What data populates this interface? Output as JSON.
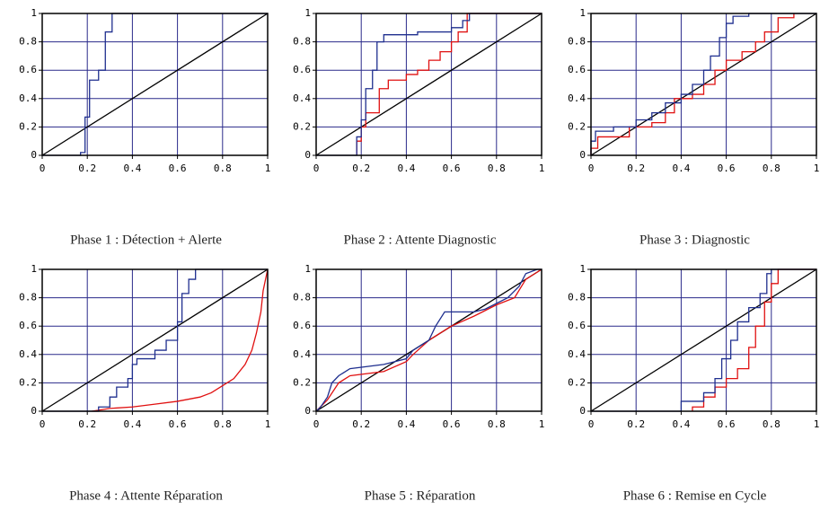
{
  "chart_data": [
    {
      "type": "line",
      "caption": "Phase 1 : Détection + Alerte",
      "xlim": [
        0,
        1
      ],
      "ylim": [
        0,
        1
      ],
      "xticks": [
        0,
        0.2,
        0.4,
        0.6,
        0.8,
        1
      ],
      "yticks": [
        0,
        0.2,
        0.4,
        0.6,
        0.8,
        1
      ],
      "grid": true,
      "grid_color": "#2a2a8a",
      "series": [
        {
          "color": "#000000",
          "x": [
            0,
            1
          ],
          "values": [
            0,
            1
          ]
        },
        {
          "color": "#1f2f8f",
          "x": [
            0,
            0.17,
            0.17,
            0.19,
            0.19,
            0.21,
            0.21,
            0.25,
            0.25,
            0.28,
            0.28,
            0.31,
            0.31,
            1
          ],
          "values": [
            0,
            0,
            0.02,
            0.02,
            0.27,
            0.27,
            0.53,
            0.53,
            0.6,
            0.6,
            0.87,
            0.87,
            1,
            1
          ]
        }
      ]
    },
    {
      "type": "line",
      "caption": "Phase 2 : Attente Diagnostic",
      "xlim": [
        0,
        1
      ],
      "ylim": [
        0,
        1
      ],
      "xticks": [
        0,
        0.2,
        0.4,
        0.6,
        0.8,
        1
      ],
      "yticks": [
        0,
        0.2,
        0.4,
        0.6,
        0.8,
        1
      ],
      "grid": true,
      "grid_color": "#2a2a8a",
      "series": [
        {
          "color": "#000000",
          "x": [
            0,
            1
          ],
          "values": [
            0,
            1
          ]
        },
        {
          "color": "#e01010",
          "x": [
            0.18,
            0.18,
            0.2,
            0.2,
            0.22,
            0.22,
            0.28,
            0.28,
            0.32,
            0.32,
            0.4,
            0.4,
            0.45,
            0.45,
            0.5,
            0.5,
            0.55,
            0.55,
            0.6,
            0.6,
            0.63,
            0.63,
            0.67,
            0.67,
            1
          ],
          "values": [
            0,
            0.1,
            0.1,
            0.2,
            0.2,
            0.3,
            0.3,
            0.47,
            0.47,
            0.53,
            0.53,
            0.57,
            0.57,
            0.6,
            0.6,
            0.67,
            0.67,
            0.73,
            0.73,
            0.8,
            0.8,
            0.87,
            0.87,
            1,
            1
          ]
        },
        {
          "color": "#1f2f8f",
          "x": [
            0,
            0.18,
            0.18,
            0.2,
            0.2,
            0.22,
            0.22,
            0.25,
            0.25,
            0.27,
            0.27,
            0.3,
            0.3,
            0.45,
            0.45,
            0.6,
            0.6,
            0.65,
            0.65,
            0.68,
            0.68,
            1
          ],
          "values": [
            0,
            0,
            0.13,
            0.13,
            0.25,
            0.25,
            0.47,
            0.47,
            0.6,
            0.6,
            0.8,
            0.8,
            0.85,
            0.85,
            0.87,
            0.87,
            0.9,
            0.9,
            0.95,
            0.95,
            1,
            1
          ]
        }
      ]
    },
    {
      "type": "line",
      "caption": "Phase 3 : Diagnostic",
      "xlim": [
        0,
        1
      ],
      "ylim": [
        0,
        1
      ],
      "xticks": [
        0,
        0.2,
        0.4,
        0.6,
        0.8,
        1
      ],
      "yticks": [
        0,
        0.2,
        0.4,
        0.6,
        0.8,
        1
      ],
      "grid": true,
      "grid_color": "#2a2a8a",
      "series": [
        {
          "color": "#000000",
          "x": [
            0,
            1
          ],
          "values": [
            0,
            1
          ]
        },
        {
          "color": "#e01010",
          "x": [
            0,
            0,
            0.03,
            0.03,
            0.17,
            0.17,
            0.27,
            0.27,
            0.33,
            0.33,
            0.37,
            0.37,
            0.45,
            0.45,
            0.5,
            0.5,
            0.55,
            0.55,
            0.6,
            0.6,
            0.67,
            0.67,
            0.73,
            0.73,
            0.77,
            0.77,
            0.83,
            0.83,
            0.9,
            0.9
          ],
          "values": [
            0,
            0.05,
            0.05,
            0.13,
            0.13,
            0.2,
            0.2,
            0.23,
            0.23,
            0.3,
            0.3,
            0.4,
            0.4,
            0.43,
            0.43,
            0.5,
            0.5,
            0.6,
            0.6,
            0.67,
            0.67,
            0.73,
            0.73,
            0.8,
            0.8,
            0.87,
            0.87,
            0.97,
            0.97,
            1
          ]
        },
        {
          "color": "#1f2f8f",
          "x": [
            0,
            0,
            0.02,
            0.02,
            0.1,
            0.1,
            0.2,
            0.2,
            0.27,
            0.27,
            0.33,
            0.33,
            0.4,
            0.4,
            0.45,
            0.45,
            0.5,
            0.5,
            0.53,
            0.53,
            0.57,
            0.57,
            0.6,
            0.6,
            0.63,
            0.63,
            0.7,
            0.7,
            1
          ],
          "values": [
            0,
            0.1,
            0.1,
            0.17,
            0.17,
            0.2,
            0.2,
            0.25,
            0.25,
            0.3,
            0.3,
            0.37,
            0.37,
            0.43,
            0.43,
            0.5,
            0.5,
            0.6,
            0.6,
            0.7,
            0.7,
            0.83,
            0.83,
            0.93,
            0.93,
            0.98,
            0.98,
            1,
            1
          ]
        }
      ]
    },
    {
      "type": "line",
      "caption": "Phase 4 : Attente Réparation",
      "xlim": [
        0,
        1
      ],
      "ylim": [
        0,
        1
      ],
      "xticks": [
        0,
        0.2,
        0.4,
        0.6,
        0.8,
        1
      ],
      "yticks": [
        0,
        0.2,
        0.4,
        0.6,
        0.8,
        1
      ],
      "grid": true,
      "grid_color": "#2a2a8a",
      "series": [
        {
          "color": "#000000",
          "x": [
            0,
            1
          ],
          "values": [
            0,
            1
          ]
        },
        {
          "color": "#e01010",
          "x": [
            0.22,
            0.3,
            0.4,
            0.5,
            0.6,
            0.7,
            0.75,
            0.8,
            0.85,
            0.9,
            0.93,
            0.95,
            0.97,
            0.98,
            1
          ],
          "values": [
            0,
            0.02,
            0.03,
            0.05,
            0.07,
            0.1,
            0.13,
            0.18,
            0.23,
            0.33,
            0.43,
            0.55,
            0.7,
            0.85,
            1
          ]
        },
        {
          "color": "#1f2f8f",
          "x": [
            0,
            0.25,
            0.25,
            0.3,
            0.3,
            0.33,
            0.33,
            0.38,
            0.38,
            0.4,
            0.4,
            0.42,
            0.42,
            0.5,
            0.5,
            0.55,
            0.55,
            0.6,
            0.6,
            0.62,
            0.62,
            0.65,
            0.65,
            0.68,
            0.68,
            1
          ],
          "values": [
            0,
            0,
            0.03,
            0.03,
            0.1,
            0.1,
            0.17,
            0.17,
            0.23,
            0.23,
            0.33,
            0.33,
            0.37,
            0.37,
            0.43,
            0.43,
            0.5,
            0.5,
            0.63,
            0.63,
            0.83,
            0.83,
            0.93,
            0.93,
            1,
            1
          ]
        }
      ]
    },
    {
      "type": "line",
      "caption": "Phase 5 : Réparation",
      "xlim": [
        0,
        1
      ],
      "ylim": [
        0,
        1
      ],
      "xticks": [
        0,
        0.2,
        0.4,
        0.6,
        0.8,
        1
      ],
      "yticks": [
        0,
        0.2,
        0.4,
        0.6,
        0.8,
        1
      ],
      "grid": true,
      "grid_color": "#2a2a8a",
      "series": [
        {
          "color": "#000000",
          "x": [
            0,
            1
          ],
          "values": [
            0,
            1
          ]
        },
        {
          "color": "#e01010",
          "x": [
            0,
            0.05,
            0.1,
            0.15,
            0.3,
            0.4,
            0.43,
            0.5,
            0.55,
            0.6,
            0.7,
            0.8,
            0.88,
            0.93,
            1
          ],
          "values": [
            0,
            0.08,
            0.2,
            0.25,
            0.28,
            0.35,
            0.4,
            0.5,
            0.55,
            0.6,
            0.67,
            0.75,
            0.8,
            0.93,
            1
          ]
        },
        {
          "color": "#1f2f8f",
          "x": [
            0,
            0.02,
            0.05,
            0.07,
            0.1,
            0.15,
            0.3,
            0.4,
            0.43,
            0.5,
            0.53,
            0.57,
            0.7,
            0.75,
            0.85,
            0.9,
            0.93,
            0.98,
            1
          ],
          "values": [
            0,
            0.03,
            0.1,
            0.2,
            0.25,
            0.3,
            0.33,
            0.37,
            0.43,
            0.5,
            0.6,
            0.7,
            0.7,
            0.72,
            0.8,
            0.88,
            0.97,
            1,
            1
          ]
        }
      ]
    },
    {
      "type": "line",
      "caption": "Phase 6 : Remise en Cycle",
      "xlim": [
        0,
        1
      ],
      "ylim": [
        0,
        1
      ],
      "xticks": [
        0,
        0.2,
        0.4,
        0.6,
        0.8,
        1
      ],
      "yticks": [
        0,
        0.2,
        0.4,
        0.6,
        0.8,
        1
      ],
      "grid": true,
      "grid_color": "#2a2a8a",
      "series": [
        {
          "color": "#000000",
          "x": [
            0,
            1
          ],
          "values": [
            0,
            1
          ]
        },
        {
          "color": "#e01010",
          "x": [
            0.45,
            0.45,
            0.5,
            0.5,
            0.55,
            0.55,
            0.6,
            0.6,
            0.65,
            0.65,
            0.7,
            0.7,
            0.73,
            0.73,
            0.77,
            0.77,
            0.8,
            0.8,
            0.83,
            0.83,
            1
          ],
          "values": [
            0,
            0.03,
            0.03,
            0.1,
            0.1,
            0.17,
            0.17,
            0.23,
            0.23,
            0.3,
            0.3,
            0.45,
            0.45,
            0.6,
            0.6,
            0.77,
            0.77,
            0.9,
            0.9,
            1,
            1
          ]
        },
        {
          "color": "#1f2f8f",
          "x": [
            0,
            0.4,
            0.4,
            0.5,
            0.5,
            0.55,
            0.55,
            0.58,
            0.58,
            0.62,
            0.62,
            0.65,
            0.65,
            0.7,
            0.7,
            0.75,
            0.75,
            0.78,
            0.78,
            0.8,
            0.8,
            1
          ],
          "values": [
            0,
            0,
            0.07,
            0.07,
            0.13,
            0.13,
            0.23,
            0.23,
            0.37,
            0.37,
            0.5,
            0.5,
            0.63,
            0.63,
            0.73,
            0.73,
            0.83,
            0.83,
            0.97,
            0.97,
            1,
            1
          ]
        }
      ]
    }
  ]
}
